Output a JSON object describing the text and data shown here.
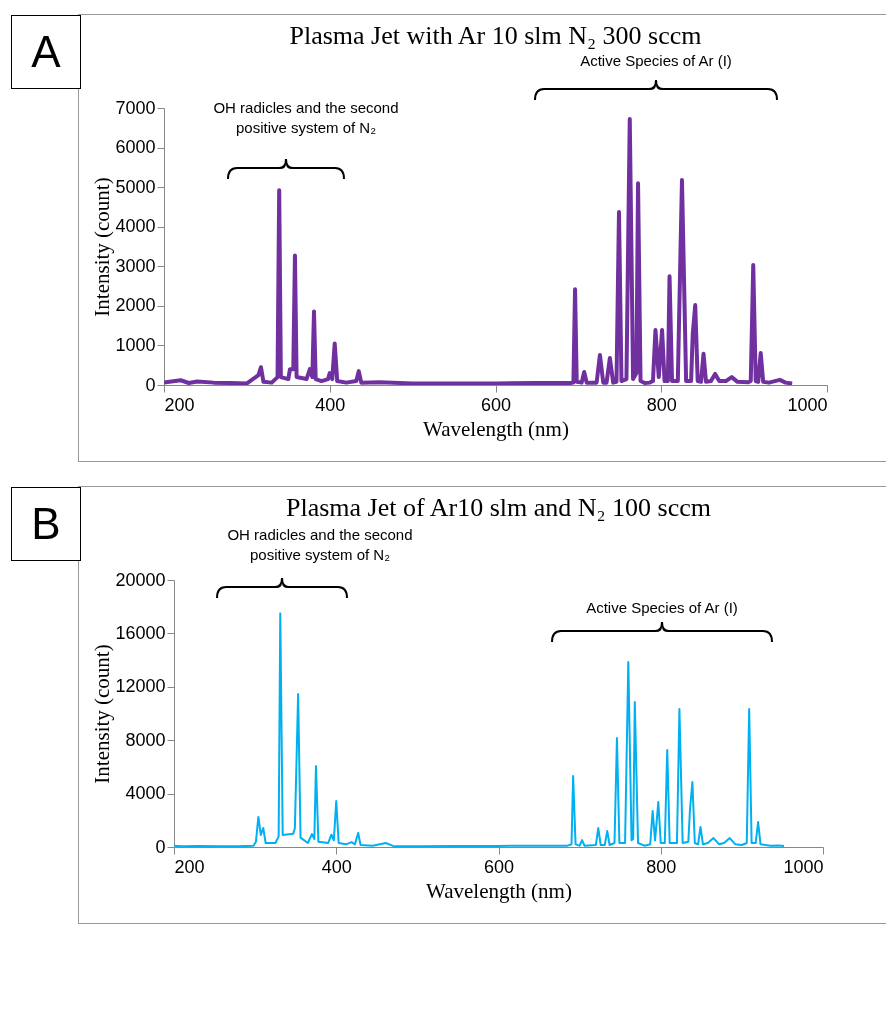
{
  "chart_data": [
    {
      "type": "line",
      "title": "Plasma Jet with Ar 10 slm N₂ 300 sccm",
      "xlabel": "Wavelength (nm)",
      "ylabel": "Intensity (count)",
      "xlim": [
        200,
        1000
      ],
      "xticks": [
        200,
        400,
        600,
        800,
        1000
      ],
      "ylim": [
        0,
        7000
      ],
      "yticks": [
        0,
        1000,
        2000,
        3000,
        4000,
        5000,
        6000,
        7000
      ],
      "annotations": [
        "A",
        "OH radicles and the second positive system of N₂",
        "Active Species of Ar (I)"
      ],
      "series": [
        {
          "color": "#7030a0",
          "x": [
            200,
            220,
            230,
            240,
            260,
            280,
            300,
            314,
            317,
            320,
            330,
            337,
            339,
            341,
            350,
            352,
            356,
            358,
            360,
            372,
            376,
            379,
            381,
            383,
            390,
            398,
            400,
            403,
            406,
            409,
            420,
            432,
            435,
            438,
            460,
            500,
            550,
            600,
            650,
            690,
            694,
            696,
            698,
            704,
            707,
            710,
            722,
            726,
            730,
            734,
            738,
            742,
            746,
            749,
            752,
            758,
            762,
            766,
            770,
            772,
            775,
            780,
            786,
            790,
            793,
            797,
            801,
            804,
            808,
            810,
            813,
            820,
            825,
            830,
            836,
            838,
            841,
            844,
            848,
            851,
            854,
            860,
            865,
            870,
            878,
            885,
            892,
            905,
            908,
            911,
            914,
            917,
            920,
            923,
            930,
            943,
            950,
            958
          ],
          "values": [
            60,
            120,
            50,
            90,
            60,
            50,
            40,
            250,
            450,
            80,
            60,
            200,
            4920,
            200,
            150,
            400,
            400,
            3270,
            200,
            150,
            400,
            200,
            1860,
            150,
            100,
            150,
            300,
            150,
            1050,
            100,
            60,
            100,
            350,
            60,
            70,
            40,
            40,
            40,
            50,
            50,
            60,
            2420,
            80,
            60,
            330,
            60,
            60,
            760,
            60,
            60,
            680,
            60,
            80,
            4370,
            100,
            150,
            6720,
            150,
            300,
            5100,
            100,
            50,
            60,
            100,
            1390,
            200,
            1390,
            100,
            100,
            2750,
            100,
            100,
            5180,
            100,
            100,
            1290,
            2020,
            100,
            80,
            790,
            80,
            100,
            280,
            100,
            100,
            200,
            80,
            70,
            100,
            3030,
            100,
            80,
            810,
            80,
            60,
            130,
            60,
            40
          ]
        }
      ]
    },
    {
      "type": "line",
      "title": "Plasma Jet of Ar10 slm and N₂ 100 sccm",
      "xlabel": "Wavelength (nm)",
      "ylabel": "Intensity (count)",
      "xlim": [
        200,
        1000
      ],
      "xticks": [
        200,
        400,
        600,
        800,
        1000
      ],
      "ylim": [
        0,
        20000
      ],
      "yticks": [
        0,
        4000,
        8000,
        12000,
        16000,
        20000
      ],
      "annotations": [
        "B",
        "OH radicles and the second positive system of N₂",
        "Active Species of Ar (I)"
      ],
      "series": [
        {
          "color": "#00b0f0",
          "x": [
            200,
            210,
            230,
            260,
            280,
            298,
            301,
            304,
            307,
            310,
            313,
            325,
            329,
            331,
            334,
            347,
            349,
            353,
            356,
            365,
            370,
            373,
            375,
            378,
            390,
            394,
            397,
            400,
            403,
            412,
            419,
            423,
            427,
            430,
            445,
            461,
            470,
            500,
            550,
            600,
            650,
            685,
            690,
            692,
            695,
            700,
            703,
            706,
            720,
            723,
            726,
            731,
            734,
            737,
            743,
            746,
            749,
            756,
            760,
            764,
            766,
            768,
            772,
            780,
            787,
            790,
            793,
            797,
            800,
            805,
            808,
            811,
            820,
            823,
            827,
            834,
            836,
            839,
            842,
            846,
            849,
            852,
            858,
            865,
            872,
            878,
            885,
            892,
            900,
            906,
            909,
            912,
            917,
            920,
            923,
            935,
            945,
            952
          ],
          "values": [
            100,
            50,
            80,
            60,
            60,
            100,
            400,
            2250,
            900,
            1420,
            300,
            300,
            800,
            17500,
            900,
            1000,
            1400,
            11460,
            700,
            300,
            970,
            600,
            6070,
            400,
            300,
            920,
            500,
            3450,
            300,
            200,
            370,
            200,
            1050,
            150,
            100,
            300,
            80,
            60,
            80,
            80,
            100,
            100,
            200,
            5320,
            200,
            100,
            520,
            100,
            150,
            1420,
            150,
            150,
            1200,
            150,
            300,
            8160,
            300,
            300,
            13860,
            500,
            600,
            10860,
            300,
            100,
            200,
            2700,
            500,
            3370,
            300,
            300,
            7270,
            300,
            300,
            10340,
            300,
            400,
            2770,
            4870,
            300,
            200,
            1500,
            200,
            300,
            670,
            200,
            300,
            670,
            200,
            150,
            300,
            10340,
            300,
            300,
            1870,
            200,
            100,
            120,
            80
          ]
        }
      ]
    }
  ]
}
